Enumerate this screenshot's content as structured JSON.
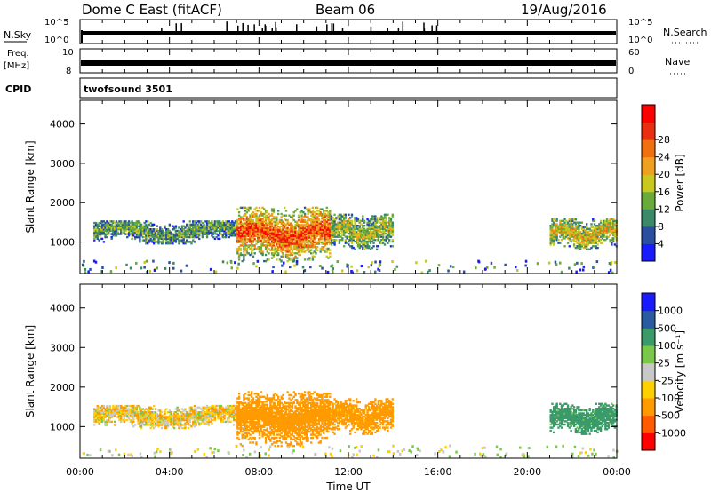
{
  "header": {
    "title": "Dome C East (fitACF)",
    "beam": "Beam 06",
    "date": "19/Aug/2016"
  },
  "labels": {
    "nsky": "N.Sky",
    "nsearch": "N.Search",
    "freq_line1": "Freq.",
    "freq_line2": "[MHz]",
    "nave": "Nave",
    "cpid": "CPID",
    "cpid_value": "twofsound 3501",
    "noise_top": "10^5",
    "noise_bottom": "10^0",
    "freq_top": "10",
    "freq_bottom": "8",
    "nave_top": "60",
    "nave_bottom": "0"
  },
  "colors": {
    "power": [
      "#1a1aff",
      "#2a4fa0",
      "#3a8a6a",
      "#6aaa3a",
      "#c8c81e",
      "#f0a020",
      "#f07010",
      "#e83010",
      "#ff0000"
    ],
    "velocity": [
      "#ff0000",
      "#ff5a00",
      "#ff9a00",
      "#ffd000",
      "#c8c8c8",
      "#7ac84a",
      "#3a9a6a",
      "#2a5aa0",
      "#1a1aff"
    ]
  },
  "chart_data": [
    {
      "type": "heatmap",
      "name": "power",
      "ylabel": "Slant Range [km]",
      "colorbar_label": "Power [dB]",
      "colorbar_ticks": [
        "4",
        "8",
        "12",
        "16",
        "20",
        "24",
        "28"
      ],
      "ylim": [
        200,
        4600
      ],
      "yticks": [
        1000,
        2000,
        3000,
        4000
      ],
      "xlim": [
        0,
        24
      ],
      "echo_regions": [
        {
          "t_start": 0.6,
          "t_end": 7.0,
          "range_low": 950,
          "range_high": 1550,
          "intensity": 0.35
        },
        {
          "t_start": 7.0,
          "t_end": 11.2,
          "range_low": 500,
          "range_high": 1900,
          "intensity": 0.85
        },
        {
          "t_start": 11.2,
          "t_end": 14.0,
          "range_low": 800,
          "range_high": 1700,
          "intensity": 0.5
        },
        {
          "t_start": 21.0,
          "t_end": 24.0,
          "range_low": 800,
          "range_high": 1600,
          "intensity": 0.6
        }
      ]
    },
    {
      "type": "heatmap",
      "name": "velocity",
      "ylabel": "Slant Range [km]",
      "colorbar_label": "Velocity [m s⁻¹]",
      "colorbar_ticks": [
        "-1000",
        "-500",
        "-100",
        "-25",
        "25",
        "100",
        "500",
        "1000"
      ],
      "ylim": [
        200,
        4600
      ],
      "yticks": [
        1000,
        2000,
        3000,
        4000
      ],
      "xlim": [
        0,
        24
      ],
      "xlabel": "Time UT",
      "xticks": [
        "00:00",
        "04:00",
        "08:00",
        "12:00",
        "16:00",
        "20:00",
        "00:00"
      ],
      "echo_regions": [
        {
          "t_start": 0.6,
          "t_end": 7.0,
          "range_low": 950,
          "range_high": 1550,
          "mean_velocity": -60
        },
        {
          "t_start": 7.0,
          "t_end": 11.2,
          "range_low": 500,
          "range_high": 1900,
          "mean_velocity": -250
        },
        {
          "t_start": 11.2,
          "t_end": 14.0,
          "range_low": 800,
          "range_high": 1700,
          "mean_velocity": -200
        },
        {
          "t_start": 21.0,
          "t_end": 24.0,
          "range_low": 800,
          "range_high": 1600,
          "mean_velocity": 200
        }
      ]
    }
  ]
}
